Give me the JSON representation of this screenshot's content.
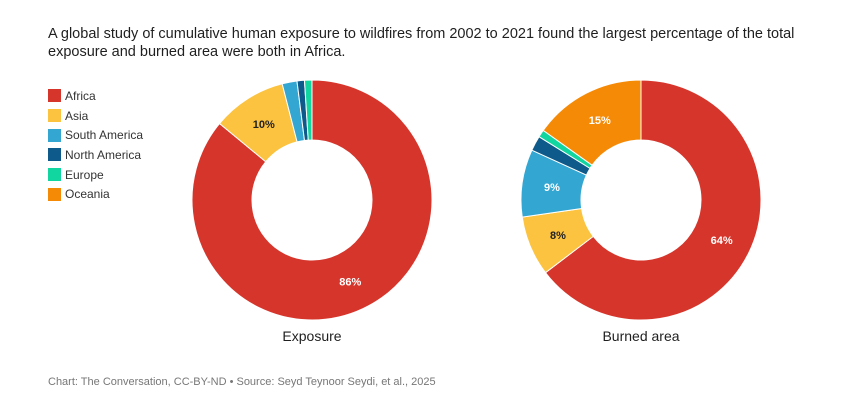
{
  "title": "A global study of cumulative human exposure to wildfires from 2002 to 2021 found the largest percentage of the total exposure and burned area were both in Africa.",
  "legend": [
    {
      "name": "Africa",
      "color": "#d6352b"
    },
    {
      "name": "Asia",
      "color": "#fbc33f"
    },
    {
      "name": "South America",
      "color": "#33a6d2"
    },
    {
      "name": "North America",
      "color": "#0e5a8a"
    },
    {
      "name": "Europe",
      "color": "#12d6a0"
    },
    {
      "name": "Oceania",
      "color": "#f58a07"
    }
  ],
  "chart_data": [
    {
      "type": "pie",
      "title": "Exposure",
      "donut": true,
      "slices": [
        {
          "name": "Africa",
          "value": 86,
          "label": "86%",
          "label_color": "#ffffff"
        },
        {
          "name": "Asia",
          "value": 10,
          "label": "10%",
          "label_color": "#222222"
        },
        {
          "name": "South America",
          "value": 2,
          "label": ""
        },
        {
          "name": "North America",
          "value": 1,
          "label": ""
        },
        {
          "name": "Europe",
          "value": 1,
          "label": ""
        },
        {
          "name": "Oceania",
          "value": 0,
          "label": ""
        }
      ]
    },
    {
      "type": "pie",
      "title": "Burned area",
      "donut": true,
      "slices": [
        {
          "name": "Africa",
          "value": 64,
          "label": "64%",
          "label_color": "#ffffff"
        },
        {
          "name": "Asia",
          "value": 8,
          "label": "8%",
          "label_color": "#222222"
        },
        {
          "name": "South America",
          "value": 9,
          "label": "9%",
          "label_color": "#ffffff"
        },
        {
          "name": "North America",
          "value": 2,
          "label": ""
        },
        {
          "name": "Europe",
          "value": 1,
          "label": ""
        },
        {
          "name": "Oceania",
          "value": 15,
          "label": "15%",
          "label_color": "#ffffff"
        }
      ]
    }
  ],
  "credit": "Chart: The Conversation, CC-BY-ND • Source: Seyd Teynoor Seydi, et al., 2025"
}
